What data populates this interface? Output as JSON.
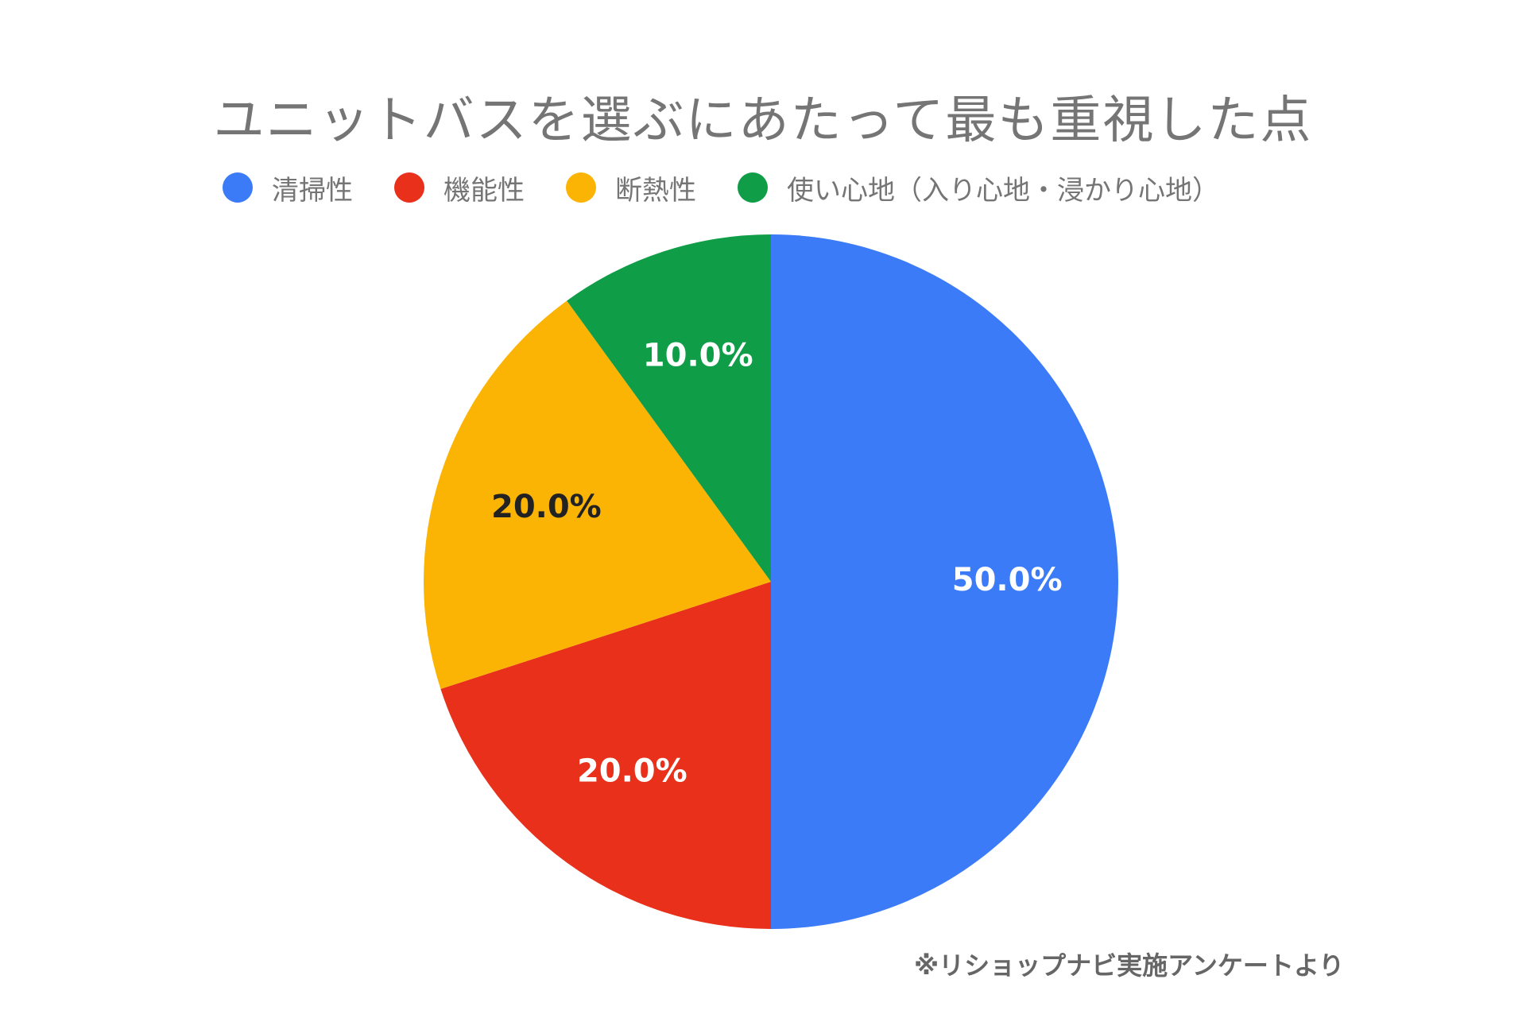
{
  "chart_data": {
    "type": "pie",
    "title": "ユニットバスを選ぶにあたって最も重視した点",
    "legend_position": "top",
    "categories": [
      "清掃性",
      "機能性",
      "断熱性",
      "使い心地（入り心地・浸かり心地）"
    ],
    "values": [
      50.0,
      20.0,
      20.0,
      10.0
    ],
    "labels": [
      "50.0%",
      "20.0%",
      "20.0%",
      "10.0%"
    ],
    "colors": [
      "#3b7bf7",
      "#e8301b",
      "#fbb403",
      "#0f9d48"
    ],
    "label_colors": [
      "#ffffff",
      "#ffffff",
      "#222222",
      "#ffffff"
    ],
    "note": "※リショップナビ実施アンケートより"
  }
}
